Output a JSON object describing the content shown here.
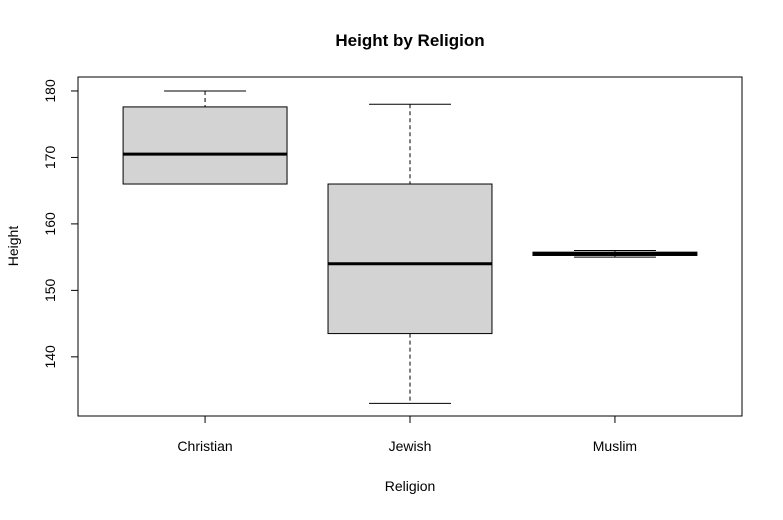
{
  "chart_data": {
    "type": "boxplot",
    "title": "Height by Religion",
    "x_label": "Religion",
    "y_label": "Height",
    "categories": [
      "Christian",
      "Jewish",
      "Muslim"
    ],
    "min": [
      166,
      133,
      155
    ],
    "q1": [
      166,
      143.5,
      155.25
    ],
    "median": [
      170.5,
      154,
      155.5
    ],
    "q3": [
      177.6,
      166,
      155.75
    ],
    "max": [
      180,
      178,
      156
    ],
    "color": "#d3d3d3",
    "ylim": [
      131.1,
      182.1
    ],
    "yticks": [
      140,
      150,
      160,
      170,
      180
    ]
  }
}
